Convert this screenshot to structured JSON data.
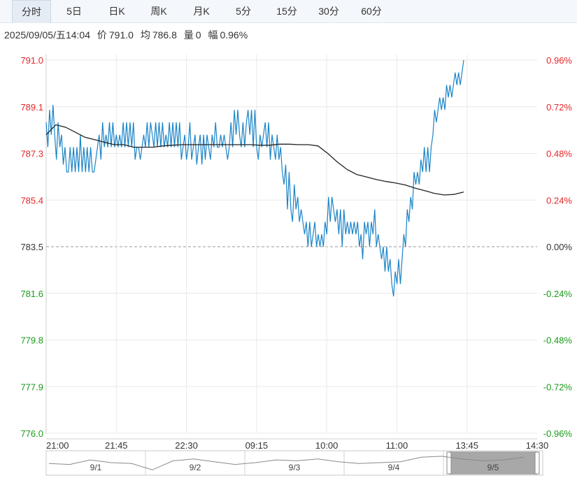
{
  "tabs": [
    {
      "label": "分时",
      "active": true
    },
    {
      "label": "5日",
      "active": false
    },
    {
      "label": "日K",
      "active": false
    },
    {
      "label": "周K",
      "active": false
    },
    {
      "label": "月K",
      "active": false
    },
    {
      "label": "5分",
      "active": false
    },
    {
      "label": "15分",
      "active": false
    },
    {
      "label": "30分",
      "active": false
    },
    {
      "label": "60分",
      "active": false
    }
  ],
  "info": {
    "datetime": "2025/09/05/五14:04",
    "price_label": "价",
    "price": "791.0",
    "avg_label": "均",
    "avg": "786.8",
    "vol_label": "量",
    "vol": "0",
    "amp_label": "幅",
    "amp": "0.96%"
  },
  "colors": {
    "up": "#e4262a",
    "down": "#1a9a1a",
    "neutral": "#333333",
    "price_line": "#1a84c7",
    "avg_line": "#222222",
    "grid": "#e9e9e9"
  },
  "chart_data": {
    "type": "line",
    "ylim": [
      776.0,
      791.0
    ],
    "base_price": 783.5,
    "y_ticks": [
      {
        "price": "791.0",
        "pct": "0.96%",
        "dir": "up"
      },
      {
        "price": "789.1",
        "pct": "0.72%",
        "dir": "up"
      },
      {
        "price": "787.3",
        "pct": "0.48%",
        "dir": "up"
      },
      {
        "price": "785.4",
        "pct": "0.24%",
        "dir": "up"
      },
      {
        "price": "783.5",
        "pct": "0.00%",
        "dir": "flat"
      },
      {
        "price": "781.6",
        "pct": "-0.24%",
        "dir": "down"
      },
      {
        "price": "779.8",
        "pct": "-0.48%",
        "dir": "down"
      },
      {
        "price": "777.9",
        "pct": "-0.72%",
        "dir": "down"
      },
      {
        "price": "776.0",
        "pct": "-0.96%",
        "dir": "down"
      }
    ],
    "x_ticks": [
      "21:00",
      "21:45",
      "22:30",
      "09:15",
      "10:00",
      "11:00",
      "13:45",
      "14:30"
    ],
    "series": [
      {
        "role": "price",
        "values": [
          788.5,
          787.5,
          789.0,
          788.0,
          789.2,
          788.0,
          787.0,
          788.5,
          787.5,
          788.0,
          786.8,
          787.5,
          786.5,
          786.5,
          787.5,
          786.5,
          787.5,
          786.5,
          787.5,
          786.5,
          788.0,
          786.5,
          787.5,
          786.5,
          787.5,
          786.5,
          787.5,
          786.5,
          786.5,
          787.0,
          787.5,
          788.0,
          787.0,
          788.5,
          787.5,
          788.0,
          787.5,
          788.5,
          787.5,
          788.5,
          787.5,
          788.0,
          787.5,
          788.0,
          787.5,
          788.5,
          787.5,
          788.5,
          787.5,
          788.5,
          787.5,
          788.5,
          787.0,
          787.5,
          787.5,
          787.0,
          787.5,
          788.0,
          787.5,
          788.5,
          787.5,
          788.5,
          788.0,
          787.5,
          788.5,
          787.5,
          788.5,
          787.5,
          788.5,
          787.5,
          788.0,
          787.5,
          788.5,
          787.5,
          788.5,
          787.5,
          788.5,
          787.5,
          788.5,
          787.0,
          787.5,
          788.0,
          787.0,
          787.5,
          788.5,
          787.0,
          787.5,
          788.0,
          786.8,
          787.5,
          788.0,
          786.8,
          788.0,
          787.0,
          788.0,
          787.5,
          787.0,
          788.0,
          787.5,
          788.5,
          787.5,
          787.5,
          788.0,
          787.5,
          788.0,
          787.5,
          787.0,
          787.5,
          788.5,
          787.5,
          789.0,
          788.0,
          789.0,
          788.0,
          787.5,
          788.5,
          787.5,
          788.5,
          789.0,
          788.0,
          789.0,
          787.5,
          789.0,
          787.5,
          787.0,
          788.0,
          787.5,
          788.0,
          788.5,
          787.5,
          788.5,
          787.0,
          788.0,
          787.5,
          787.0,
          788.0,
          787.0,
          787.5,
          786.5,
          786.0,
          786.8,
          785.0,
          786.5,
          785.0,
          784.5,
          786.0,
          785.0,
          785.5,
          784.5,
          785.0,
          784.5,
          784.0,
          784.5,
          783.5,
          784.5,
          783.5,
          784.0,
          784.5,
          783.5,
          784.0,
          783.5,
          784.0,
          783.5,
          784.5,
          784.0,
          785.5,
          784.5,
          785.5,
          785.0,
          784.5,
          785.0,
          784.0,
          785.0,
          783.5,
          785.0,
          784.0,
          784.5,
          784.0,
          784.5,
          784.0,
          784.5,
          784.0,
          784.5,
          783.5,
          784.0,
          783.0,
          784.5,
          784.0,
          784.5,
          783.5,
          784.5,
          784.0,
          785.0,
          783.5,
          784.0,
          783.5,
          783.0,
          783.5,
          782.5,
          783.5,
          782.5,
          783.0,
          782.0,
          781.5,
          782.5,
          782.0,
          783.0,
          782.0,
          783.0,
          784.0,
          783.5,
          785.0,
          784.5,
          785.5,
          785.0,
          786.5,
          786.0,
          786.5,
          786.0,
          787.0,
          786.5,
          787.5,
          786.5,
          787.5,
          786.5,
          787.5,
          788.0,
          789.0,
          788.5,
          789.0,
          789.5,
          789.0,
          789.5,
          789.0,
          790.0,
          789.5,
          790.0,
          789.5,
          790.0,
          790.5,
          790.0,
          790.5,
          790.0,
          790.5,
          791.0
        ],
        "color": "#1a84c7"
      },
      {
        "role": "avg",
        "values": [
          788.0,
          788.4,
          788.3,
          788.1,
          787.9,
          787.8,
          787.7,
          787.6,
          787.6,
          787.5,
          787.5,
          787.5,
          787.55,
          787.58,
          787.6,
          787.6,
          787.6,
          787.6,
          787.6,
          787.6,
          787.6,
          787.6,
          787.58,
          787.58,
          787.62,
          787.62,
          787.6,
          787.6,
          787.55,
          787.25,
          786.9,
          786.6,
          786.4,
          786.3,
          786.2,
          786.12,
          786.06,
          785.98,
          785.85,
          785.75,
          785.64,
          785.58,
          785.6,
          785.7
        ],
        "color": "#222222"
      }
    ]
  },
  "navigator": {
    "days": [
      "9/1",
      "9/2",
      "9/3",
      "9/4",
      "9/5"
    ],
    "selected_index": 4
  }
}
